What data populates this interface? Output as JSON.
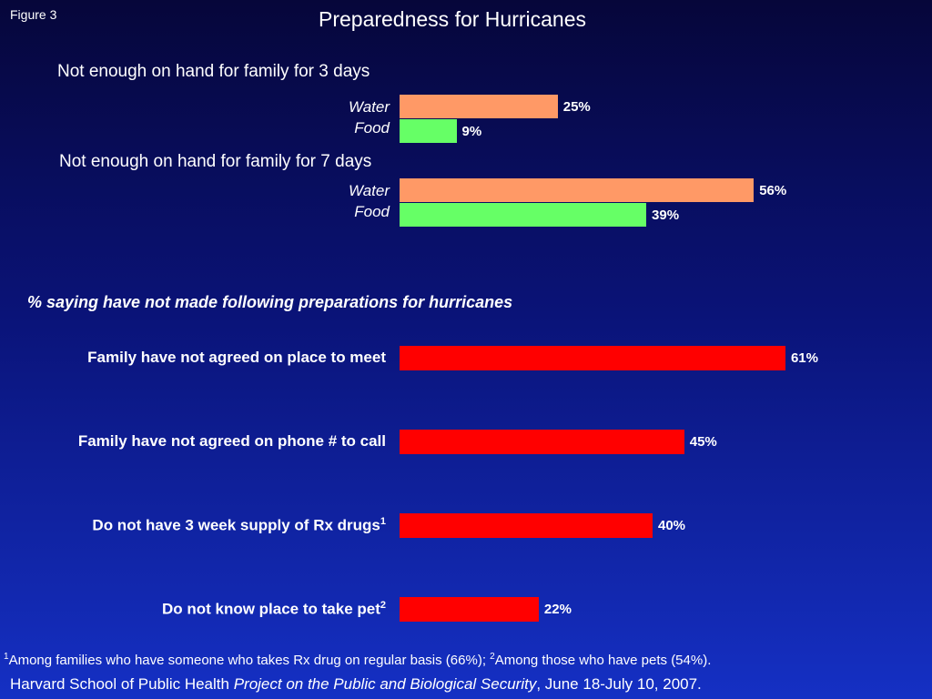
{
  "figure_label": "Figure 3",
  "chart_data": [
    {
      "type": "bar",
      "orientation": "horizontal",
      "title": "Preparedness for Hurricanes",
      "subtitle": "Not enough on hand for family for 3 days",
      "categories": [
        "Water",
        "Food"
      ],
      "values": [
        25,
        9
      ],
      "value_labels": [
        "25%",
        "9%"
      ],
      "colors": [
        "#ff9966",
        "#66ff66"
      ],
      "xlim": [
        0,
        100
      ]
    },
    {
      "type": "bar",
      "orientation": "horizontal",
      "subtitle": "Not enough on hand for family for 7 days",
      "categories": [
        "Water",
        "Food"
      ],
      "values": [
        56,
        39
      ],
      "value_labels": [
        "56%",
        "39%"
      ],
      "colors": [
        "#ff9966",
        "#66ff66"
      ],
      "xlim": [
        0,
        100
      ]
    },
    {
      "type": "bar",
      "orientation": "horizontal",
      "title": "% saying have not made following preparations for hurricanes",
      "categories": [
        {
          "text": "Family have not agreed on place to meet",
          "sup": ""
        },
        {
          "text": "Family have not agreed on phone # to call",
          "sup": ""
        },
        {
          "text": "Do not have 3 week supply of Rx drugs",
          "sup": "1"
        },
        {
          "text": "Do not know place to take pet",
          "sup": "2"
        }
      ],
      "values": [
        61,
        45,
        40,
        22
      ],
      "value_labels": [
        "61%",
        "45%",
        "40%",
        "22%"
      ],
      "color": "#ff0000",
      "xlim": [
        0,
        100
      ]
    }
  ],
  "footnote": {
    "sup1": "1",
    "text1": "Among families who have someone who takes Rx drug on regular basis (66%); ",
    "sup2": "2",
    "text2": "Among those who have pets (54%)."
  },
  "source": {
    "prefix": "Harvard School of Public Health ",
    "italic": "Project on the Public and Biological Security",
    "suffix": ", June 18-July 10, 2007."
  }
}
